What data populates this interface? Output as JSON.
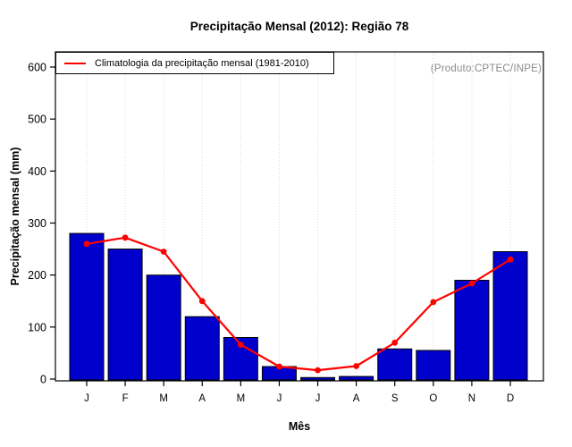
{
  "figure": {
    "title": "Precipitação Mensal (2012): Região 78",
    "x_axis_title": "Mês",
    "y_axis_title": "Precipitação mensal (mm)",
    "annotation": "(Produto:CPTEC/INPE)"
  },
  "chart_data": {
    "type": "bar",
    "title": "Precipitação Mensal (2012): Região 78",
    "xlabel": "Mês",
    "ylabel": "Precipitação mensal (mm)",
    "ylim": [
      0,
      600
    ],
    "yticks": [
      0,
      100,
      200,
      300,
      400,
      500,
      600
    ],
    "categories": [
      "J",
      "F",
      "M",
      "A",
      "M",
      "J",
      "J",
      "A",
      "S",
      "O",
      "N",
      "D"
    ],
    "series": [
      {
        "name": "Precipitação mensal 2012",
        "type": "bar",
        "color": "#0000cd",
        "values": [
          280,
          250,
          200,
          120,
          80,
          24,
          3,
          5,
          58,
          55,
          190,
          245
        ]
      },
      {
        "name": "Climatologia da precipitação mensal (1981-2010)",
        "type": "line",
        "color": "#ff0000",
        "values": [
          260,
          272,
          245,
          150,
          66,
          24,
          17,
          25,
          70,
          148,
          184,
          230
        ]
      }
    ],
    "legend": {
      "entries": [
        "Climatologia da precipitação mensal (1981-2010)"
      ],
      "position": "top-left"
    },
    "annotation": "(Produto:CPTEC/INPE)",
    "grid": "vertical dotted lines at each month",
    "colors": {
      "bar": "#0000cd",
      "bar_border": "#000000",
      "line": "#ff0000",
      "grid": "#d9d9d9",
      "frame": "#000000",
      "annotation_text": "#8a8a8a"
    }
  }
}
